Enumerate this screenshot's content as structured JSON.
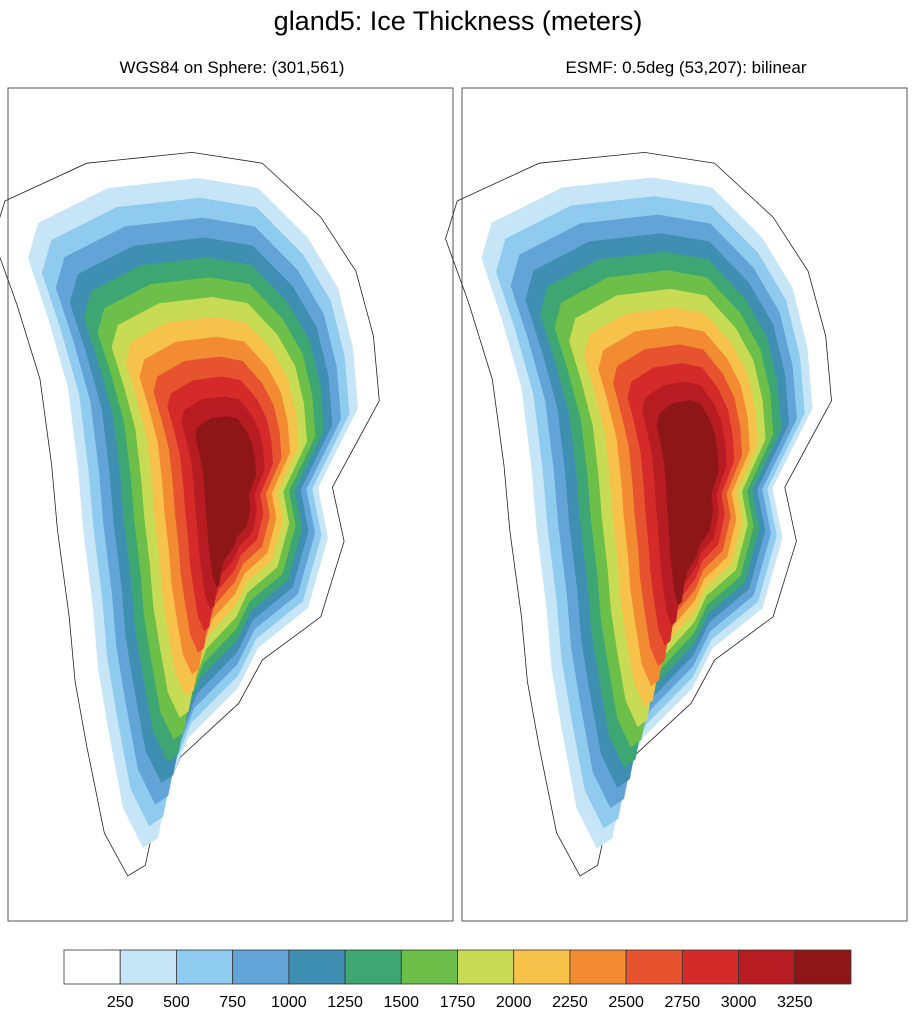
{
  "title": "gland5: Ice Thickness (meters)",
  "panels": [
    {
      "subtitle": "WGS84 on Sphere: (301,561)"
    },
    {
      "subtitle": "ESMF: 0.5deg (53,207): bilinear"
    }
  ],
  "colorbar": {
    "labels": [
      250,
      500,
      750,
      1000,
      1250,
      1500,
      1750,
      2000,
      2250,
      2500,
      2750,
      3000,
      3250
    ],
    "colors": [
      "#ffffff",
      "#c6e6f8",
      "#8ecbef",
      "#62a3d8",
      "#3f8fb3",
      "#3ea673",
      "#6cbf48",
      "#c8db55",
      "#f7c24a",
      "#f28b32",
      "#e6532e",
      "#d42a2a",
      "#b71c22",
      "#8f1616"
    ]
  }
}
